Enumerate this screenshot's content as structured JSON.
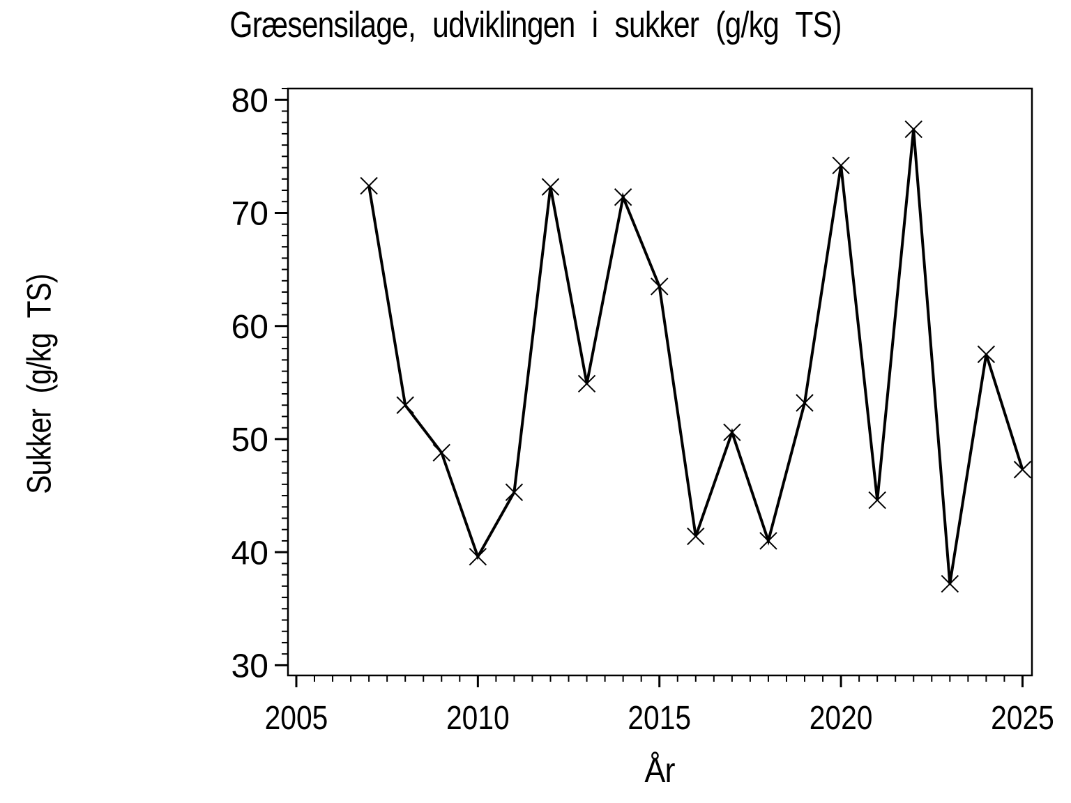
{
  "page": {
    "background": "#ffffff",
    "foreground": "#000000"
  },
  "chart_data": {
    "type": "line",
    "title": "Græsensilage, udviklingen i sukker (g/kg TS)",
    "xlabel": "År",
    "ylabel": "Sukker (g/kg TS)",
    "series": [
      {
        "name": "Sukker",
        "marker": "x-cross",
        "color": "#000000",
        "x": [
          2007,
          2008,
          2009,
          2010,
          2011,
          2012,
          2013,
          2014,
          2015,
          2016,
          2017,
          2018,
          2019,
          2020,
          2021,
          2022,
          2023,
          2024,
          2025
        ],
        "y": [
          72.4,
          53.0,
          48.8,
          39.6,
          45.3,
          72.3,
          54.9,
          71.4,
          63.5,
          41.4,
          50.6,
          41.0,
          53.2,
          74.2,
          44.6,
          77.4,
          37.2,
          57.5,
          47.3
        ]
      }
    ],
    "xlim": [
      2004.77,
      2025.26
    ],
    "ylim": [
      29.1,
      81.0
    ],
    "x_major_ticks": [
      2005,
      2010,
      2015,
      2020,
      2025
    ],
    "x_minor_step": 0.5,
    "y_major_ticks": [
      30,
      40,
      50,
      60,
      70,
      80
    ],
    "y_minor_step": 1,
    "grid": false,
    "legend": "none",
    "frame": true
  }
}
